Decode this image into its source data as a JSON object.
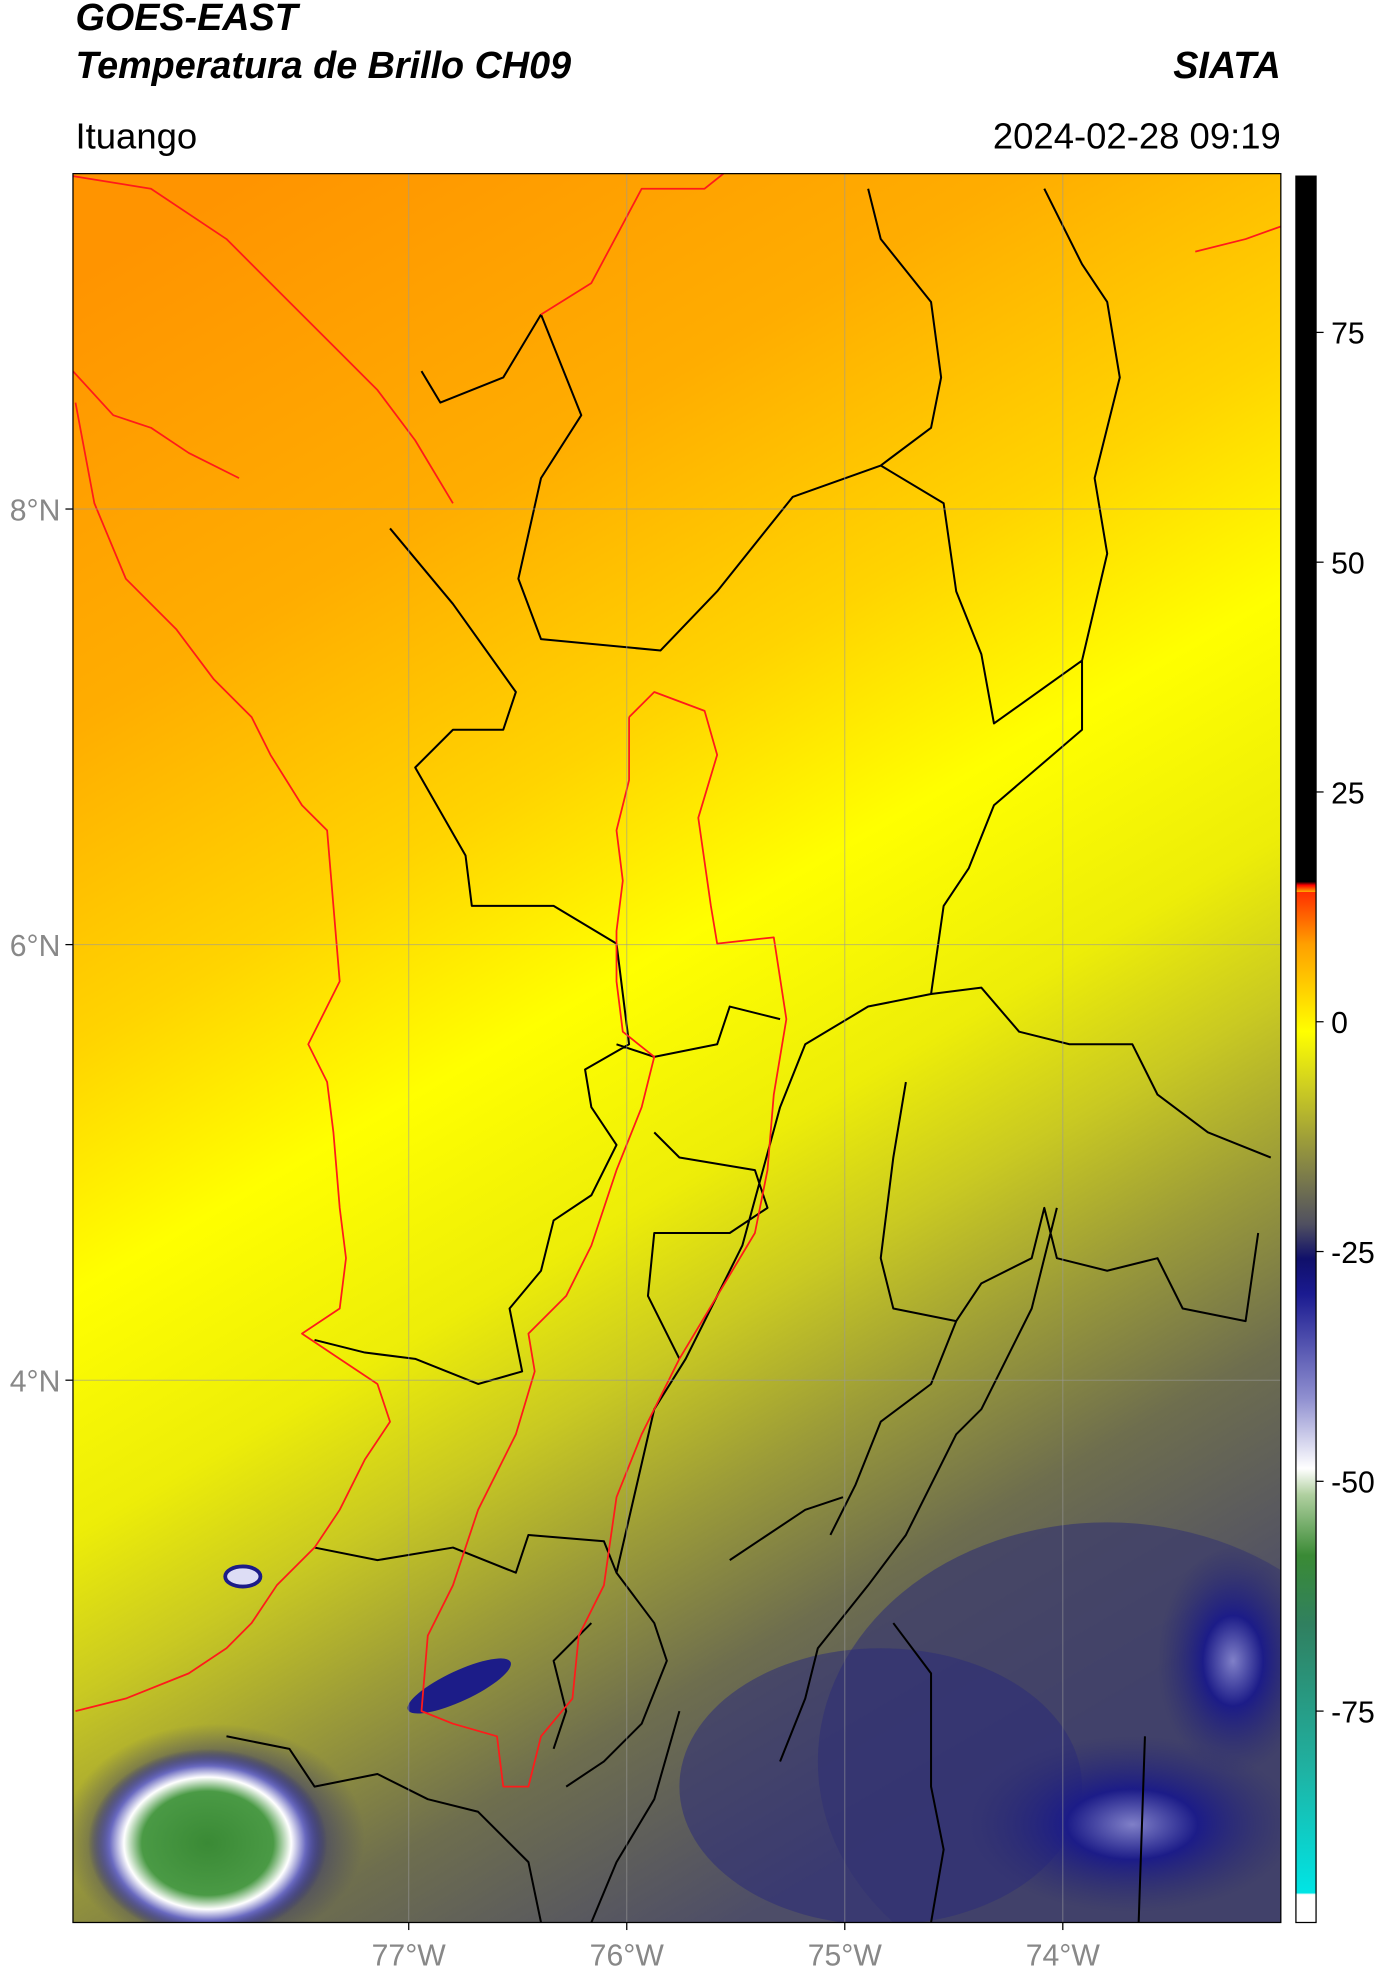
{
  "header": {
    "title": "GOES-EAST",
    "subtitle": "Temperatura de Brillo CH09",
    "source": "SIATA",
    "region": "Ituango",
    "datetime": "2024-02-28 09:19"
  },
  "map": {
    "xlim": [
      -78.54,
      -73.0
    ],
    "ylim": [
      1.51,
      9.54
    ],
    "xticks": [
      {
        "value": -77,
        "label": "77°W"
      },
      {
        "value": -76,
        "label": "76°W"
      },
      {
        "value": -75,
        "label": "75°W"
      },
      {
        "value": -74,
        "label": "74°W"
      }
    ],
    "yticks": [
      {
        "value": 4,
        "label": "4°N"
      },
      {
        "value": 6,
        "label": "6°N"
      },
      {
        "value": 8,
        "label": "8°N"
      }
    ]
  },
  "colorbar": {
    "lim": [
      -98,
      92
    ],
    "ticks": [
      -75,
      -50,
      -25,
      0,
      25,
      50,
      75
    ]
  }
}
